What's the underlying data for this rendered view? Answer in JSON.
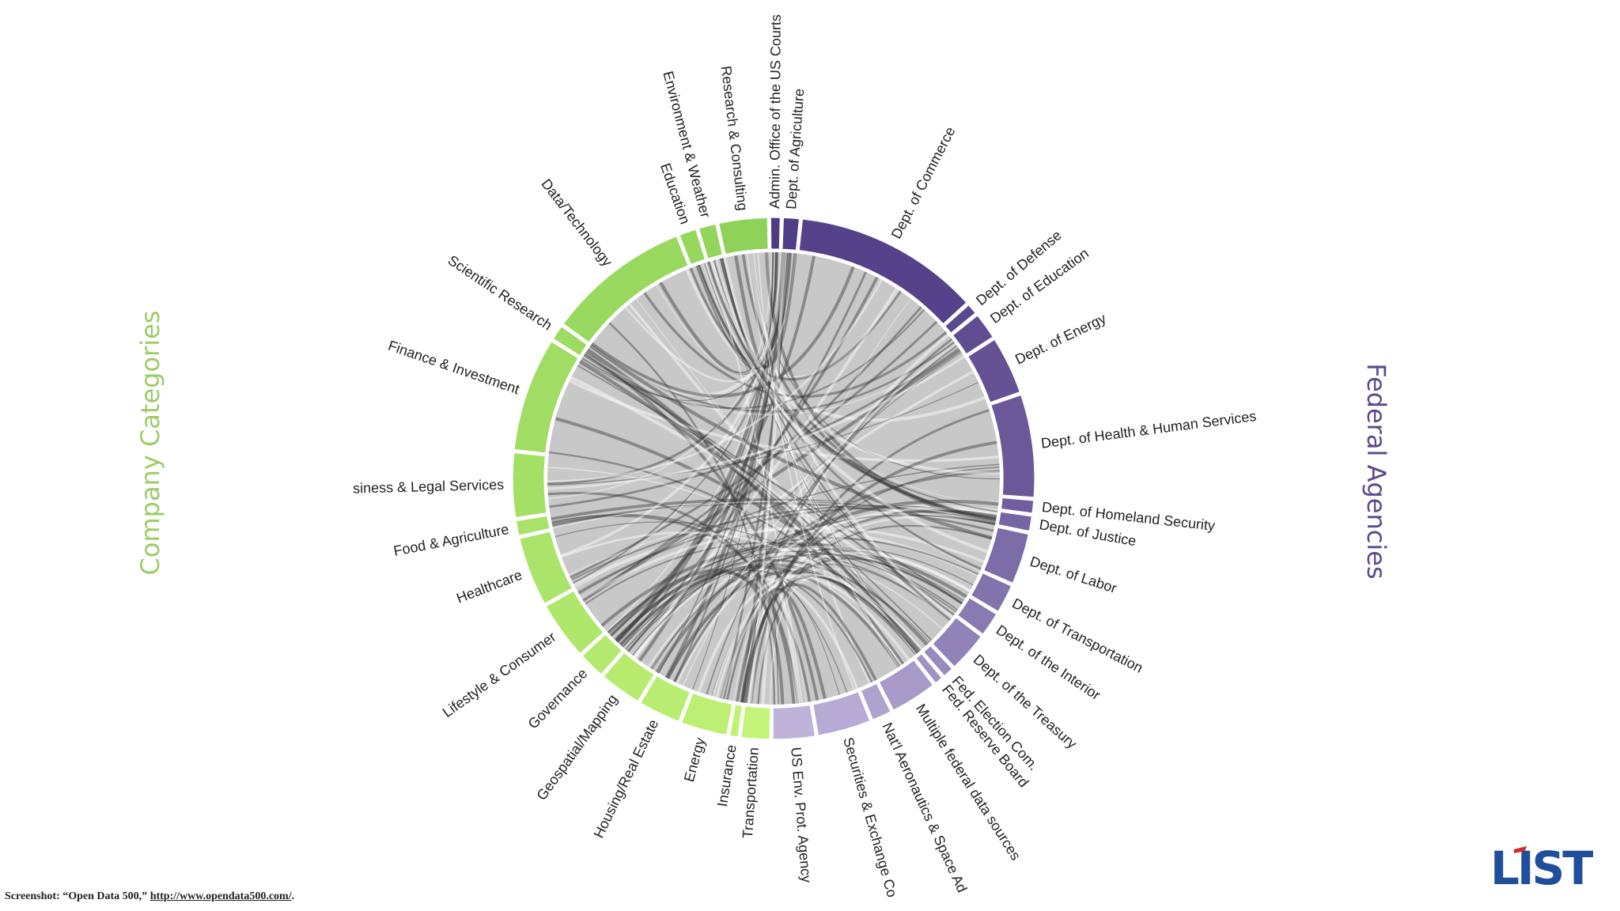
{
  "titles": {
    "left": "Company Categories",
    "right": "Federal Agencies"
  },
  "caption": {
    "prefix": "Screenshot: “Open Data 500,” ",
    "link": "http://www.opendata500.com/",
    "suffix": "."
  },
  "logo": {
    "text": "LIST",
    "color": "#1f4e9c"
  },
  "colors": {
    "company_light": "#c4f478",
    "company_dark": "#8fd25a",
    "agency_dark": "#4f3b85",
    "agency_light": "#bfb3da",
    "inner_disc": "#c8c8c8",
    "chord": "#3a3a3a",
    "label": "#222222"
  },
  "chart_data": {
    "type": "chord",
    "groups": {
      "federal_agencies": [
        {
          "label": "Admin. Office of the US Courts",
          "start": -1.0,
          "end": 1.8
        },
        {
          "label": "Dept. of Agriculture",
          "start": 1.8,
          "end": 6.0
        },
        {
          "label": "Dept. of Commerce",
          "start": 6.0,
          "end": 48.0
        },
        {
          "label": "Dept. of Defense",
          "start": 48.0,
          "end": 51.0
        },
        {
          "label": "Dept. of Education",
          "start": 51.0,
          "end": 57.5
        },
        {
          "label": "Dept. of Energy",
          "start": 57.5,
          "end": 71.0
        },
        {
          "label": "Dept. of Health & Human Services",
          "start": 71.0,
          "end": 94.5
        },
        {
          "label": "Dept. of Homeland Security",
          "start": 94.5,
          "end": 98.0
        },
        {
          "label": "Dept. of Justice",
          "start": 98.0,
          "end": 102.0
        },
        {
          "label": "Dept. of Labor",
          "start": 102.0,
          "end": 114.0
        },
        {
          "label": "Dept. of Transportation",
          "start": 114.0,
          "end": 121.0
        },
        {
          "label": "Dept. of the Interior",
          "start": 121.0,
          "end": 127.0
        },
        {
          "label": "Dept. of the Treasury",
          "start": 127.0,
          "end": 136.5
        },
        {
          "label": "Fed. Election Com.",
          "start": 136.5,
          "end": 139.5
        },
        {
          "label": "Fed. Reserve Board",
          "start": 139.5,
          "end": 142.0
        },
        {
          "label": "Multiple federal data sources",
          "start": 142.0,
          "end": 153.0
        },
        {
          "label": "Nat'l Aeronautics & Space Ad",
          "start": 153.0,
          "end": 158.0
        },
        {
          "label": "Securities & Exchange Co",
          "start": 158.0,
          "end": 170.5
        },
        {
          "label": "US Env. Prot. Agency",
          "start": 170.5,
          "end": 180.5
        }
      ],
      "company_categories": [
        {
          "label": "Transportation",
          "start": 180.5,
          "end": 187.5
        },
        {
          "label": "Insurance",
          "start": 187.5,
          "end": 190.0
        },
        {
          "label": "Energy",
          "start": 190.0,
          "end": 201.0
        },
        {
          "label": "Housing/Real Estate",
          "start": 201.0,
          "end": 211.0
        },
        {
          "label": "Geospatial/Mapping",
          "start": 211.0,
          "end": 221.0
        },
        {
          "label": "Governance",
          "start": 221.0,
          "end": 227.5
        },
        {
          "label": "Lifestyle & Consumer",
          "start": 227.5,
          "end": 241.0
        },
        {
          "label": "Healthcare",
          "start": 241.0,
          "end": 257.0
        },
        {
          "label": "Food & Agriculture",
          "start": 257.0,
          "end": 261.0
        },
        {
          "label": "Business & Legal Services",
          "start": 261.0,
          "end": 276.0
        },
        {
          "label": "Finance & Investment",
          "start": 276.0,
          "end": 302.0
        },
        {
          "label": "Scientific Research",
          "start": 302.0,
          "end": 306.0
        },
        {
          "label": "Data/Technology",
          "start": 306.0,
          "end": 338.5
        },
        {
          "label": "Education",
          "start": 338.5,
          "end": 343.0
        },
        {
          "label": "Environment & Weather",
          "start": 343.0,
          "end": 347.5
        },
        {
          "label": "Research & Consulting",
          "start": 347.5,
          "end": 359.0
        }
      ]
    },
    "group_labels_as_shown": [
      "Admin. Office of the US Courts",
      "Dept. of Agriculture",
      "Dept. of Commerce",
      "Dept. of Defense",
      "Dept. of Education",
      "Dept. of Energy",
      "Dept. of Health & Human Services",
      "Dept. of Homeland Security",
      "Dept. of Justice",
      "Dept. of Labor",
      "Dept. of Transportation",
      "Dept. of the Interior",
      "Dept. of the Treasury",
      "Fed. Election Com.",
      "Fed. Reserve Board",
      "Multiple federal data sources",
      "Nat'l Aeronautics & Space Ad",
      "Securities & Exchange Co",
      "US Env. Prot. Agency",
      "Transportation",
      "Insurance",
      "Energy",
      "Housing/Real Estate",
      "Geospatial/Mapping",
      "Governance",
      "Lifestyle & Consumer",
      "Healthcare",
      "Food & Agriculture",
      "siness & Legal Services",
      "Finance & Investment",
      "Scientific Research",
      "Data/Technology",
      "Education",
      "Environment & Weather",
      "Research & Consulting"
    ]
  }
}
